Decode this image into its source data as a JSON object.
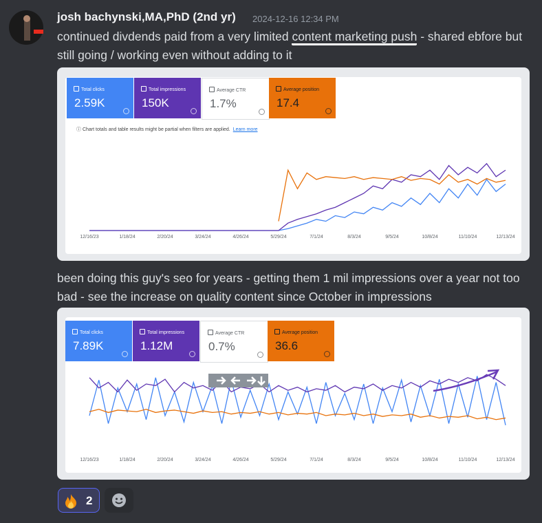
{
  "message": {
    "author": "josh bachynski,MA,PhD (2nd yr)",
    "timestamp": "2024-12-16 12:34 PM",
    "paragraph_1": [
      "continued divdends paid from a very limited ",
      "content marketing push",
      " - shared ebfore but still going / working even without adding to it"
    ],
    "paragraph_2": "been doing this guy's seo for years - getting them 1 mil impressions over a year not too bad - see the increase on quality content since October in impressions",
    "attachments": [
      {
        "metrics": [
          {
            "label": "Total clicks",
            "value": "2.59K"
          },
          {
            "label": "Total impressions",
            "value": "150K"
          },
          {
            "label": "Average CTR",
            "value": "1.7%"
          },
          {
            "label": "Average position",
            "value": "17.4"
          }
        ],
        "note": "Chart totals and table results might be partial when filters are applied.",
        "note_link": "Learn more",
        "chart_data": {
          "type": "line",
          "xlim": [
            0,
            44
          ],
          "ylim": [
            0,
            100
          ],
          "xticks": [
            {
              "value": 0,
              "label": "12/16/23"
            },
            {
              "value": 4,
              "label": "1/18/24"
            },
            {
              "value": 8,
              "label": "2/20/24"
            },
            {
              "value": 12,
              "label": "3/24/24"
            },
            {
              "value": 16,
              "label": "4/26/24"
            },
            {
              "value": 20,
              "label": "5/29/24"
            },
            {
              "value": 24,
              "label": "7/1/24"
            },
            {
              "value": 28,
              "label": "8/3/24"
            },
            {
              "value": 32,
              "label": "9/5/24"
            },
            {
              "value": 36,
              "label": "10/8/24"
            },
            {
              "value": 40,
              "label": "11/10/24"
            },
            {
              "value": 44,
              "label": "12/13/24"
            }
          ],
          "series": [
            {
              "color": "#4285f4",
              "values": [
                0,
                0,
                0,
                0,
                0,
                0,
                0,
                0,
                0,
                0,
                0,
                0,
                0,
                0,
                0,
                0,
                0,
                0,
                0,
                0,
                0,
                2,
                5,
                8,
                12,
                10,
                16,
                14,
                20,
                18,
                25,
                22,
                30,
                26,
                35,
                28,
                40,
                30,
                45,
                35,
                50,
                38,
                55,
                42,
                50
              ]
            },
            {
              "color": "#5e35b1",
              "values": [
                0,
                0,
                0,
                0,
                0,
                0,
                0,
                0,
                0,
                0,
                0,
                0,
                0,
                0,
                0,
                0,
                0,
                0,
                0,
                0,
                0,
                8,
                12,
                15,
                18,
                22,
                25,
                30,
                35,
                40,
                48,
                45,
                55,
                52,
                60,
                58,
                65,
                55,
                70,
                60,
                68,
                62,
                72,
                58,
                65
              ]
            },
            {
              "color": "#e8710a",
              "values": [
                null,
                null,
                null,
                null,
                null,
                null,
                null,
                null,
                null,
                null,
                null,
                null,
                null,
                null,
                null,
                null,
                null,
                null,
                null,
                null,
                10,
                65,
                45,
                62,
                55,
                58,
                57,
                56,
                58,
                55,
                57,
                56,
                55,
                58,
                54,
                56,
                55,
                50,
                60,
                52,
                55,
                50,
                56,
                52,
                54
              ]
            }
          ]
        }
      },
      {
        "metrics": [
          {
            "label": "Total clicks",
            "value": "7.89K"
          },
          {
            "label": "Total impressions",
            "value": "1.12M"
          },
          {
            "label": "Average CTR",
            "value": "0.7%"
          },
          {
            "label": "Average position",
            "value": "36.6"
          }
        ],
        "chart_data": {
          "type": "line",
          "xlim": [
            0,
            44
          ],
          "ylim": [
            0,
            100
          ],
          "xticks": [
            {
              "value": 0,
              "label": "12/16/23"
            },
            {
              "value": 4,
              "label": "1/18/24"
            },
            {
              "value": 8,
              "label": "2/20/24"
            },
            {
              "value": 12,
              "label": "3/24/24"
            },
            {
              "value": 16,
              "label": "4/26/24"
            },
            {
              "value": 20,
              "label": "5/29/24"
            },
            {
              "value": 24,
              "label": "7/1/24"
            },
            {
              "value": 28,
              "label": "8/3/24"
            },
            {
              "value": 32,
              "label": "9/5/24"
            },
            {
              "value": 36,
              "label": "10/8/24"
            },
            {
              "value": 40,
              "label": "11/10/24"
            },
            {
              "value": 44,
              "label": "12/13/24"
            }
          ],
          "series": [
            {
              "color": "#4285f4",
              "values": [
                40,
                85,
                30,
                75,
                45,
                80,
                35,
                88,
                40,
                70,
                32,
                82,
                45,
                78,
                30,
                85,
                38,
                72,
                40,
                80,
                35,
                70,
                42,
                76,
                30,
                82,
                40,
                68,
                35,
                80,
                30,
                75,
                45,
                85,
                32,
                78,
                40,
                86,
                30,
                80,
                38,
                90,
                35,
                82,
                28
              ]
            },
            {
              "color": "#5e35b1",
              "values": [
                88,
                75,
                82,
                70,
                85,
                72,
                80,
                78,
                86,
                70,
                82,
                75,
                78,
                72,
                84,
                70,
                76,
                74,
                80,
                70,
                78,
                72,
                76,
                70,
                74,
                72,
                78,
                70,
                76,
                74,
                80,
                72,
                78,
                75,
                82,
                76,
                84,
                80,
                86,
                82,
                88,
                84,
                92,
                86,
                78
              ]
            },
            {
              "color": "#e8710a",
              "values": [
                45,
                48,
                44,
                47,
                46,
                45,
                48,
                44,
                46,
                47,
                45,
                43,
                46,
                44,
                45,
                42,
                44,
                43,
                45,
                42,
                44,
                41,
                43,
                42,
                44,
                40,
                42,
                41,
                43,
                40,
                42,
                39,
                41,
                40,
                42,
                38,
                40,
                37,
                39,
                38,
                40,
                36,
                38,
                35,
                37
              ]
            }
          ]
        }
      }
    ],
    "reactions": [
      {
        "count": 2
      }
    ]
  }
}
